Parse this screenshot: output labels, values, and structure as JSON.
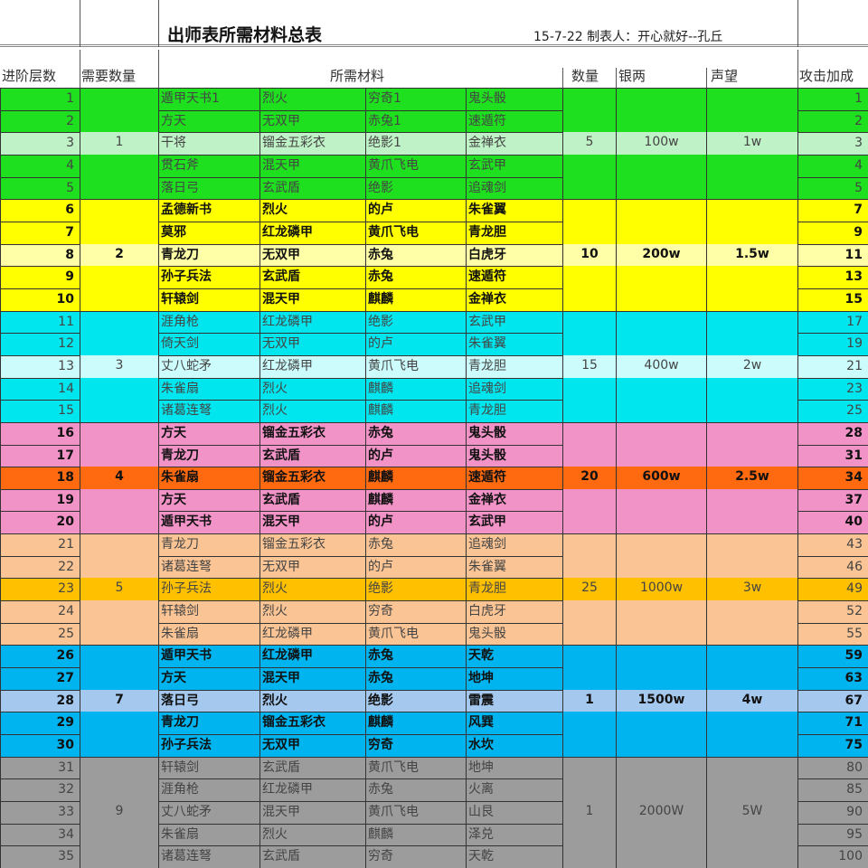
{
  "title": "出师表所需材料总表",
  "subtitle": "15-7-22 制表人：开心就好--孔丘",
  "headers": {
    "level": "进阶层数",
    "need": "需要数量",
    "materials": "所需材料",
    "qty": "数量",
    "silver": "银两",
    "reputation": "声望",
    "attack": "攻击加成"
  },
  "groups": [
    {
      "need": "1",
      "qty": "5",
      "silver": "100w",
      "reputation": "1w",
      "color": "#1ee01e",
      "highlight": "#bff2c6",
      "bold": false,
      "highlight_row": 2,
      "rows": [
        [
          "1",
          "遁甲天书1",
          "烈火",
          "穷奇1",
          "鬼头骰",
          "1"
        ],
        [
          "2",
          "方天",
          "无双甲",
          "赤兔1",
          "速遁符",
          "2"
        ],
        [
          "3",
          "干将",
          "镏金五彩衣",
          "绝影1",
          "金禅衣",
          "3"
        ],
        [
          "4",
          "贯石斧",
          "混天甲",
          "黄爪飞电",
          "玄武甲",
          "4"
        ],
        [
          "5",
          "落日弓",
          "玄武盾",
          "绝影",
          "追魂剑",
          "5"
        ]
      ]
    },
    {
      "need": "2",
      "qty": "10",
      "silver": "200w",
      "reputation": "1.5w",
      "color": "#ffff00",
      "highlight": "#ffffa8",
      "bold": true,
      "highlight_row": 2,
      "rows": [
        [
          "6",
          "孟德新书",
          "烈火",
          "的卢",
          "朱雀翼",
          "7"
        ],
        [
          "7",
          "莫邪",
          "红龙磷甲",
          "黄爪飞电",
          "青龙胆",
          "9"
        ],
        [
          "8",
          "青龙刀",
          "无双甲",
          "赤兔",
          "白虎牙",
          "11"
        ],
        [
          "9",
          "孙子兵法",
          "玄武盾",
          "赤兔",
          "速遁符",
          "13"
        ],
        [
          "10",
          "轩辕剑",
          "混天甲",
          "麒麟",
          "金禅衣",
          "15"
        ]
      ]
    },
    {
      "need": "3",
      "qty": "15",
      "silver": "400w",
      "reputation": "2w",
      "color": "#00e6ee",
      "highlight": "#ccfcfc",
      "bold": false,
      "highlight_row": 2,
      "rows": [
        [
          "11",
          "涯角枪",
          "红龙磷甲",
          "绝影",
          "玄武甲",
          "17"
        ],
        [
          "12",
          "倚天剑",
          "无双甲",
          "的卢",
          "朱雀翼",
          "19"
        ],
        [
          "13",
          "丈八蛇矛",
          "红龙磷甲",
          "黄爪飞电",
          "青龙胆",
          "21"
        ],
        [
          "14",
          "朱雀扇",
          "烈火",
          "麒麟",
          "追魂剑",
          "23"
        ],
        [
          "15",
          "诸葛连弩",
          "烈火",
          "麒麟",
          "青龙胆",
          "25"
        ]
      ]
    },
    {
      "need": "4",
      "qty": "20",
      "silver": "600w",
      "reputation": "2.5w",
      "color": "#f293c8",
      "highlight": "#ff6a10",
      "bold": true,
      "highlight_row": 2,
      "rows": [
        [
          "16",
          "方天",
          "镏金五彩衣",
          "赤兔",
          "鬼头骰",
          "28"
        ],
        [
          "17",
          "青龙刀",
          "玄武盾",
          "的卢",
          "鬼头骰",
          "31"
        ],
        [
          "18",
          "朱雀扇",
          "镏金五彩衣",
          "麒麟",
          "速遁符",
          "34"
        ],
        [
          "19",
          "方天",
          "玄武盾",
          "麒麟",
          "金禅衣",
          "37"
        ],
        [
          "20",
          "遁甲天书",
          "混天甲",
          "的卢",
          "玄武甲",
          "40"
        ]
      ]
    },
    {
      "need": "5",
      "qty": "25",
      "silver": "1000w",
      "reputation": "3w",
      "color": "#fac494",
      "highlight": "#ffc000",
      "bold": false,
      "highlight_row": 2,
      "rows": [
        [
          "21",
          "青龙刀",
          "镏金五彩衣",
          "赤兔",
          "追魂剑",
          "43"
        ],
        [
          "22",
          "诸葛连弩",
          "无双甲",
          "的卢",
          "朱雀翼",
          "46"
        ],
        [
          "23",
          "孙子兵法",
          "烈火",
          "绝影",
          "青龙胆",
          "49"
        ],
        [
          "24",
          "轩辕剑",
          "烈火",
          "穷奇",
          "白虎牙",
          "52"
        ],
        [
          "25",
          "朱雀扇",
          "红龙磷甲",
          "黄爪飞电",
          "鬼头骰",
          "55"
        ]
      ]
    },
    {
      "need": "7",
      "qty": "1",
      "silver": "1500w",
      "reputation": "4w",
      "color": "#00b4f0",
      "highlight": "#a4c8ee",
      "bold": true,
      "highlight_row": 2,
      "rows": [
        [
          "26",
          "遁甲天书",
          "红龙磷甲",
          "赤兔",
          "天乾",
          "59"
        ],
        [
          "27",
          "方天",
          "混天甲",
          "赤兔",
          "地坤",
          "63"
        ],
        [
          "28",
          "落日弓",
          "烈火",
          "绝影",
          "雷震",
          "67"
        ],
        [
          "29",
          "青龙刀",
          "镏金五彩衣",
          "麒麟",
          "风巽",
          "71"
        ],
        [
          "30",
          "孙子兵法",
          "无双甲",
          "穷奇",
          "水坎",
          "75"
        ]
      ]
    },
    {
      "need": "9",
      "qty": "1",
      "silver": "2000W",
      "reputation": "5W",
      "color": "#9c9c9c",
      "highlight": "#9c9c9c",
      "bold": false,
      "highlight_row": 2,
      "rows": [
        [
          "31",
          "轩辕剑",
          "玄武盾",
          "黄爪飞电",
          "地坤",
          "80"
        ],
        [
          "32",
          "涯角枪",
          "红龙磷甲",
          "赤兔",
          "火离",
          "85"
        ],
        [
          "33",
          "丈八蛇矛",
          "混天甲",
          "黄爪飞电",
          "山艮",
          "90"
        ],
        [
          "34",
          "朱雀扇",
          "烈火",
          "麒麟",
          "泽兑",
          "95"
        ],
        [
          "35",
          "诸葛连弩",
          "玄武盾",
          "穷奇",
          "天乾",
          "100"
        ]
      ]
    }
  ]
}
